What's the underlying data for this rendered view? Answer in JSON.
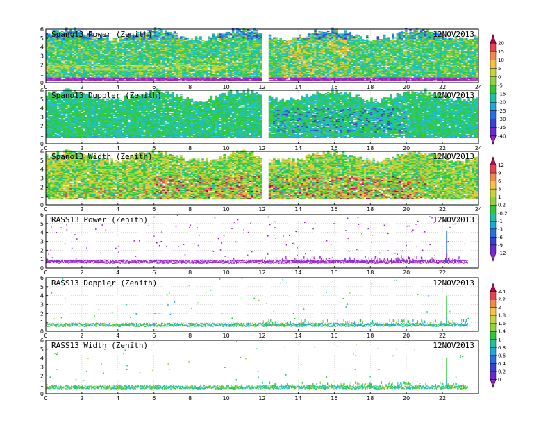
{
  "figure": {
    "date_label": "12NOV2013"
  },
  "chart_data": [
    {
      "type": "heatmap",
      "title": "Spano13  Power  (Zenith)",
      "date": "12NOV2013",
      "x_ticks": [
        0,
        2,
        4,
        6,
        8,
        10,
        12,
        14,
        16,
        18,
        20,
        22,
        24
      ],
      "xlim": [
        0,
        24
      ],
      "y_ticks": [
        0,
        1,
        2,
        3,
        4,
        5,
        6
      ],
      "ylim": [
        0,
        6
      ],
      "grid": true,
      "description": "dense field from ~0.6 to ~5.8 km, green/cyan dominant, yellow band near 1.5-2 km early, magenta/purple row at bottom",
      "colorbar": {
        "ticks": [
          "20",
          "15",
          "10",
          "5",
          "0",
          "-5",
          "-15",
          "-20",
          "-25",
          "-30",
          "-35",
          "-40"
        ],
        "colors": [
          "#c8004b",
          "#e8424f",
          "#f08a4b",
          "#f5c243",
          "#c6d63a",
          "#8fd43a",
          "#2ec83a",
          "#1fc2a0",
          "#20a8d8",
          "#2a6fe0",
          "#3a3fd8",
          "#6a2ad0",
          "#9a22c8"
        ]
      }
    },
    {
      "type": "heatmap",
      "title": "Spano13  Doppler  (Zenith)",
      "date": "12NOV2013",
      "x_ticks": [
        0,
        2,
        4,
        6,
        8,
        10,
        12,
        14,
        16,
        18,
        20,
        22,
        24
      ],
      "xlim": [
        0,
        24
      ],
      "y_ticks": [
        0,
        1,
        2,
        3,
        4,
        5,
        6
      ],
      "ylim": [
        0,
        6
      ],
      "grid": true,
      "description": "dense field, mostly green with cyan, blue patches between 13 and 20 h",
      "colorbar": null
    },
    {
      "type": "heatmap",
      "title": "Spano13  Width  (Zenith)",
      "date": "12NOV2013",
      "x_ticks": [
        0,
        2,
        4,
        6,
        8,
        10,
        12,
        14,
        16,
        18,
        20,
        22,
        24
      ],
      "xlim": [
        0,
        24
      ],
      "y_ticks": [
        0,
        1,
        2,
        3,
        4,
        5,
        6
      ],
      "ylim": [
        0,
        6
      ],
      "grid": true,
      "description": "dense field, green/yellow with red patches below 3 km from 6 to 22 h",
      "colorbar": {
        "ticks": [
          "12",
          "9",
          "6",
          "3",
          "1",
          "0.2",
          "-0.2",
          "-1",
          "-3",
          "-6",
          "-9",
          "-12"
        ],
        "colors": [
          "#c8004b",
          "#e8424f",
          "#f08a4b",
          "#f5c243",
          "#c6d63a",
          "#8fd43a",
          "#2ec83a",
          "#1fc2a0",
          "#20a8d8",
          "#2a6fe0",
          "#3a3fd8",
          "#6a2ad0",
          "#9a22c8"
        ]
      }
    },
    {
      "type": "scatter",
      "title": "RASS13  Power  (Zenith)",
      "date": "12NOV2013",
      "x_ticks": [
        0,
        2,
        4,
        6,
        8,
        10,
        12,
        14,
        16,
        18,
        20,
        22
      ],
      "xlim": [
        0,
        24
      ],
      "y_ticks": [
        0,
        1,
        2,
        3,
        4,
        5,
        6
      ],
      "ylim": [
        0,
        6
      ],
      "grid": true,
      "description": "purple points concentrated along 0.6-1 km, sparse points above, vertical column near 22.2 h",
      "colorbar": null
    },
    {
      "type": "scatter",
      "title": "RASS13  Doppler  (Zenith)",
      "date": "12NOV2013",
      "x_ticks": [
        0,
        2,
        4,
        6,
        8,
        10,
        12,
        14,
        16,
        18,
        20,
        22
      ],
      "xlim": [
        0,
        24
      ],
      "y_ticks": [
        0,
        1,
        2,
        3,
        4,
        5,
        6
      ],
      "ylim": [
        0,
        6
      ],
      "grid": true,
      "description": "green points along 0.6-1 km with cyan/blue streaks after 14 h, vertical column near 22.2 h",
      "colorbar": {
        "ticks": [
          "2.4",
          "2.2",
          "2",
          "1.8",
          "1.6",
          "1.4",
          "1",
          "0.8",
          "0.6",
          "0.4",
          "0.2",
          "0"
        ],
        "colors": [
          "#c8004b",
          "#e8424f",
          "#f08a4b",
          "#f5c243",
          "#c6d63a",
          "#8fd43a",
          "#2ec83a",
          "#1fc2a0",
          "#20a8d8",
          "#2a6fe0",
          "#3a3fd8",
          "#6a2ad0",
          "#9a22c8"
        ]
      }
    },
    {
      "type": "scatter",
      "title": "RASS13  Width  (Zenith)",
      "date": "12NOV2013",
      "x_ticks": [
        0,
        2,
        4,
        6,
        8,
        10,
        12,
        14,
        16,
        18,
        20,
        22
      ],
      "xlim": [
        0,
        24
      ],
      "y_ticks": [
        0,
        1,
        2,
        3,
        4,
        5,
        6
      ],
      "ylim": [
        0,
        6
      ],
      "grid": true,
      "description": "green/cyan points along 0.6-1 km, vertical column near 22.2 h",
      "colorbar": null
    }
  ]
}
